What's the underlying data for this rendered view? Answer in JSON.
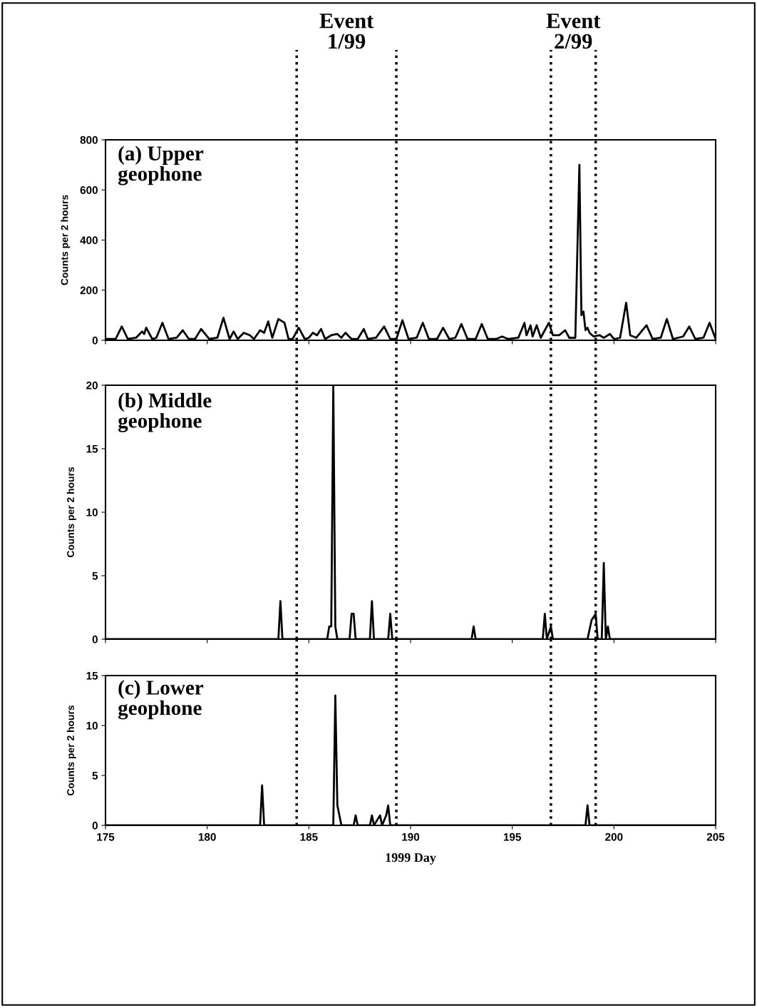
{
  "chart_data": [
    {
      "type": "line",
      "title": "(a) Upper\ngeophone",
      "ylabel": "Counts per 2 hours",
      "annotations": [
        "Event\n1/99",
        "Event\n2/99"
      ],
      "series": [
        {
          "color": "#000000",
          "x": [
            175.0,
            175.5,
            175.8,
            176.1,
            176.5,
            176.8,
            176.9,
            177.0,
            177.3,
            177.5,
            177.8,
            178.1,
            178.5,
            178.8,
            179.1,
            179.4,
            179.7,
            179.8,
            180.1,
            180.5,
            180.8,
            181.1,
            181.3,
            181.5,
            181.8,
            182.1,
            182.3,
            182.6,
            182.8,
            183.0,
            183.2,
            183.5,
            183.8,
            184.0,
            184.2,
            184.5,
            184.8,
            185.0,
            185.2,
            185.4,
            185.6,
            185.8,
            186.1,
            186.4,
            186.6,
            186.8,
            187.1,
            187.4,
            187.7,
            187.9,
            188.3,
            188.7,
            189.0,
            189.3,
            189.6,
            189.9,
            190.3,
            190.6,
            190.9,
            191.3,
            191.6,
            191.9,
            192.2,
            192.5,
            192.8,
            193.2,
            193.5,
            193.8,
            194.2,
            194.5,
            194.8,
            195.3,
            195.6,
            195.7,
            195.9,
            196.0,
            196.2,
            196.4,
            196.8,
            197.0,
            197.3,
            197.6,
            197.8,
            198.1,
            198.3,
            198.4,
            198.5,
            198.6,
            198.7,
            198.8,
            199.0,
            199.3,
            199.5,
            199.8,
            200.0,
            200.3,
            200.6,
            200.8,
            201.1,
            201.6,
            201.9,
            202.3,
            202.6,
            202.9,
            203.4,
            203.7,
            204.0,
            204.4,
            204.7,
            205.0
          ],
          "values": [
            5,
            5,
            55,
            5,
            10,
            35,
            25,
            50,
            5,
            10,
            70,
            5,
            10,
            40,
            5,
            5,
            45,
            35,
            5,
            10,
            90,
            5,
            35,
            5,
            30,
            20,
            5,
            40,
            30,
            75,
            10,
            85,
            70,
            5,
            5,
            50,
            5,
            10,
            30,
            20,
            45,
            5,
            20,
            25,
            10,
            30,
            5,
            5,
            45,
            5,
            10,
            55,
            5,
            5,
            80,
            5,
            10,
            70,
            5,
            5,
            50,
            5,
            10,
            65,
            5,
            5,
            65,
            5,
            5,
            15,
            5,
            10,
            70,
            20,
            60,
            15,
            60,
            10,
            70,
            20,
            20,
            40,
            10,
            10,
            700,
            100,
            115,
            40,
            50,
            30,
            15,
            20,
            10,
            25,
            5,
            10,
            150,
            20,
            10,
            60,
            5,
            10,
            85,
            5,
            15,
            55,
            5,
            10,
            70,
            5
          ]
        }
      ],
      "xlim": [
        175,
        205
      ],
      "xticks": [
        175,
        180,
        185,
        190,
        195,
        200,
        205
      ],
      "ylim": [
        0,
        800
      ],
      "yticks": [
        0,
        200,
        400,
        600,
        800
      ],
      "tick_labels": "y",
      "ref_lines": [
        {
          "axis": "x",
          "value": 184.4,
          "line_style": "dotted"
        },
        {
          "axis": "x",
          "value": 189.3,
          "line_style": "dotted"
        },
        {
          "axis": "x",
          "value": 196.9,
          "line_style": "dotted"
        },
        {
          "axis": "x",
          "value": 199.1,
          "line_style": "dotted"
        }
      ]
    },
    {
      "type": "line",
      "title": "(b) Middle\ngeophone",
      "ylabel": "Counts per 2 hours",
      "series": [
        {
          "color": "#000000",
          "x": [
            175,
            183.5,
            183.6,
            183.7,
            185.9,
            186.0,
            186.1,
            186.2,
            186.3,
            186.4,
            187.0,
            187.1,
            187.2,
            187.3,
            188.0,
            188.1,
            188.2,
            188.9,
            189.0,
            189.1,
            193.0,
            193.1,
            193.2,
            196.5,
            196.6,
            196.7,
            196.9,
            197.0,
            198.7,
            198.9,
            199.1,
            199.2,
            199.4,
            199.5,
            199.6,
            199.7,
            199.8,
            205
          ],
          "values": [
            0,
            0,
            3,
            0,
            0,
            1,
            1,
            20,
            1,
            0,
            0,
            2,
            2,
            0,
            0,
            3,
            0,
            0,
            2,
            0,
            0,
            1,
            0,
            0,
            2,
            0,
            1,
            0,
            0,
            1.5,
            2,
            0,
            0,
            6,
            0,
            1,
            0,
            0
          ]
        }
      ],
      "xlim": [
        175,
        205
      ],
      "xticks": [
        175,
        180,
        185,
        190,
        195,
        200,
        205
      ],
      "ylim": [
        0,
        20
      ],
      "yticks": [
        0,
        5,
        10,
        15,
        20
      ],
      "tick_labels": "y",
      "ref_lines": [
        {
          "axis": "x",
          "value": 184.4,
          "line_style": "dotted"
        },
        {
          "axis": "x",
          "value": 189.3,
          "line_style": "dotted"
        },
        {
          "axis": "x",
          "value": 196.9,
          "line_style": "dotted"
        },
        {
          "axis": "x",
          "value": 199.1,
          "line_style": "dotted"
        }
      ]
    },
    {
      "type": "line",
      "title": "(c) Lower\ngeophone",
      "ylabel": "Counts per 2 hours",
      "xlabel": "1999 Day",
      "series": [
        {
          "color": "#000000",
          "x": [
            175,
            182.6,
            182.7,
            182.8,
            186.2,
            186.3,
            186.4,
            186.6,
            187.2,
            187.3,
            187.4,
            188.0,
            188.1,
            188.2,
            188.5,
            188.6,
            188.8,
            188.9,
            189.0,
            198.6,
            198.7,
            198.8,
            205
          ],
          "values": [
            0,
            0,
            4,
            0,
            0,
            13,
            2,
            0,
            0,
            1,
            0,
            0,
            1,
            0,
            1,
            0,
            1,
            2,
            0,
            0,
            2,
            0,
            0
          ]
        }
      ],
      "xlim": [
        175,
        205
      ],
      "xticks": [
        175,
        180,
        185,
        190,
        195,
        200,
        205
      ],
      "ylim": [
        0,
        15
      ],
      "yticks": [
        0,
        5,
        10,
        15
      ],
      "ref_lines": [
        {
          "axis": "x",
          "value": 184.4,
          "line_style": "dotted"
        },
        {
          "axis": "x",
          "value": 189.3,
          "line_style": "dotted"
        },
        {
          "axis": "x",
          "value": 196.9,
          "line_style": "dotted"
        },
        {
          "axis": "x",
          "value": 199.1,
          "line_style": "dotted"
        }
      ]
    }
  ]
}
